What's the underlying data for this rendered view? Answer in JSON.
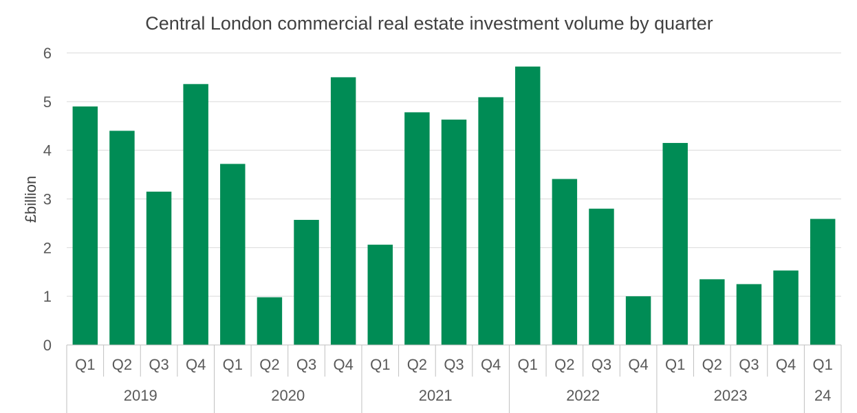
{
  "chart_data": {
    "type": "bar",
    "title": "Central London commercial real estate investment volume by quarter",
    "ylabel": "£billion",
    "xlabel": "",
    "ylim": [
      0,
      6
    ],
    "yticks": [
      0,
      1,
      2,
      3,
      4,
      5,
      6
    ],
    "grid": true,
    "bar_color": "#008c55",
    "categories": [
      "Q1",
      "Q2",
      "Q3",
      "Q4",
      "Q1",
      "Q2",
      "Q3",
      "Q4",
      "Q1",
      "Q2",
      "Q3",
      "Q4",
      "Q1",
      "Q2",
      "Q3",
      "Q4",
      "Q1",
      "Q2",
      "Q3",
      "Q4",
      "Q1"
    ],
    "groups": [
      {
        "label": "2019",
        "count": 4
      },
      {
        "label": "2020",
        "count": 4
      },
      {
        "label": "2021",
        "count": 4
      },
      {
        "label": "2022",
        "count": 4
      },
      {
        "label": "2023",
        "count": 4
      },
      {
        "label": "24",
        "count": 1
      }
    ],
    "values": [
      4.9,
      4.4,
      3.15,
      5.36,
      3.72,
      0.98,
      2.57,
      5.5,
      2.06,
      4.78,
      4.63,
      5.09,
      5.72,
      3.41,
      2.8,
      1.0,
      4.15,
      1.35,
      1.25,
      1.53,
      2.59
    ]
  }
}
